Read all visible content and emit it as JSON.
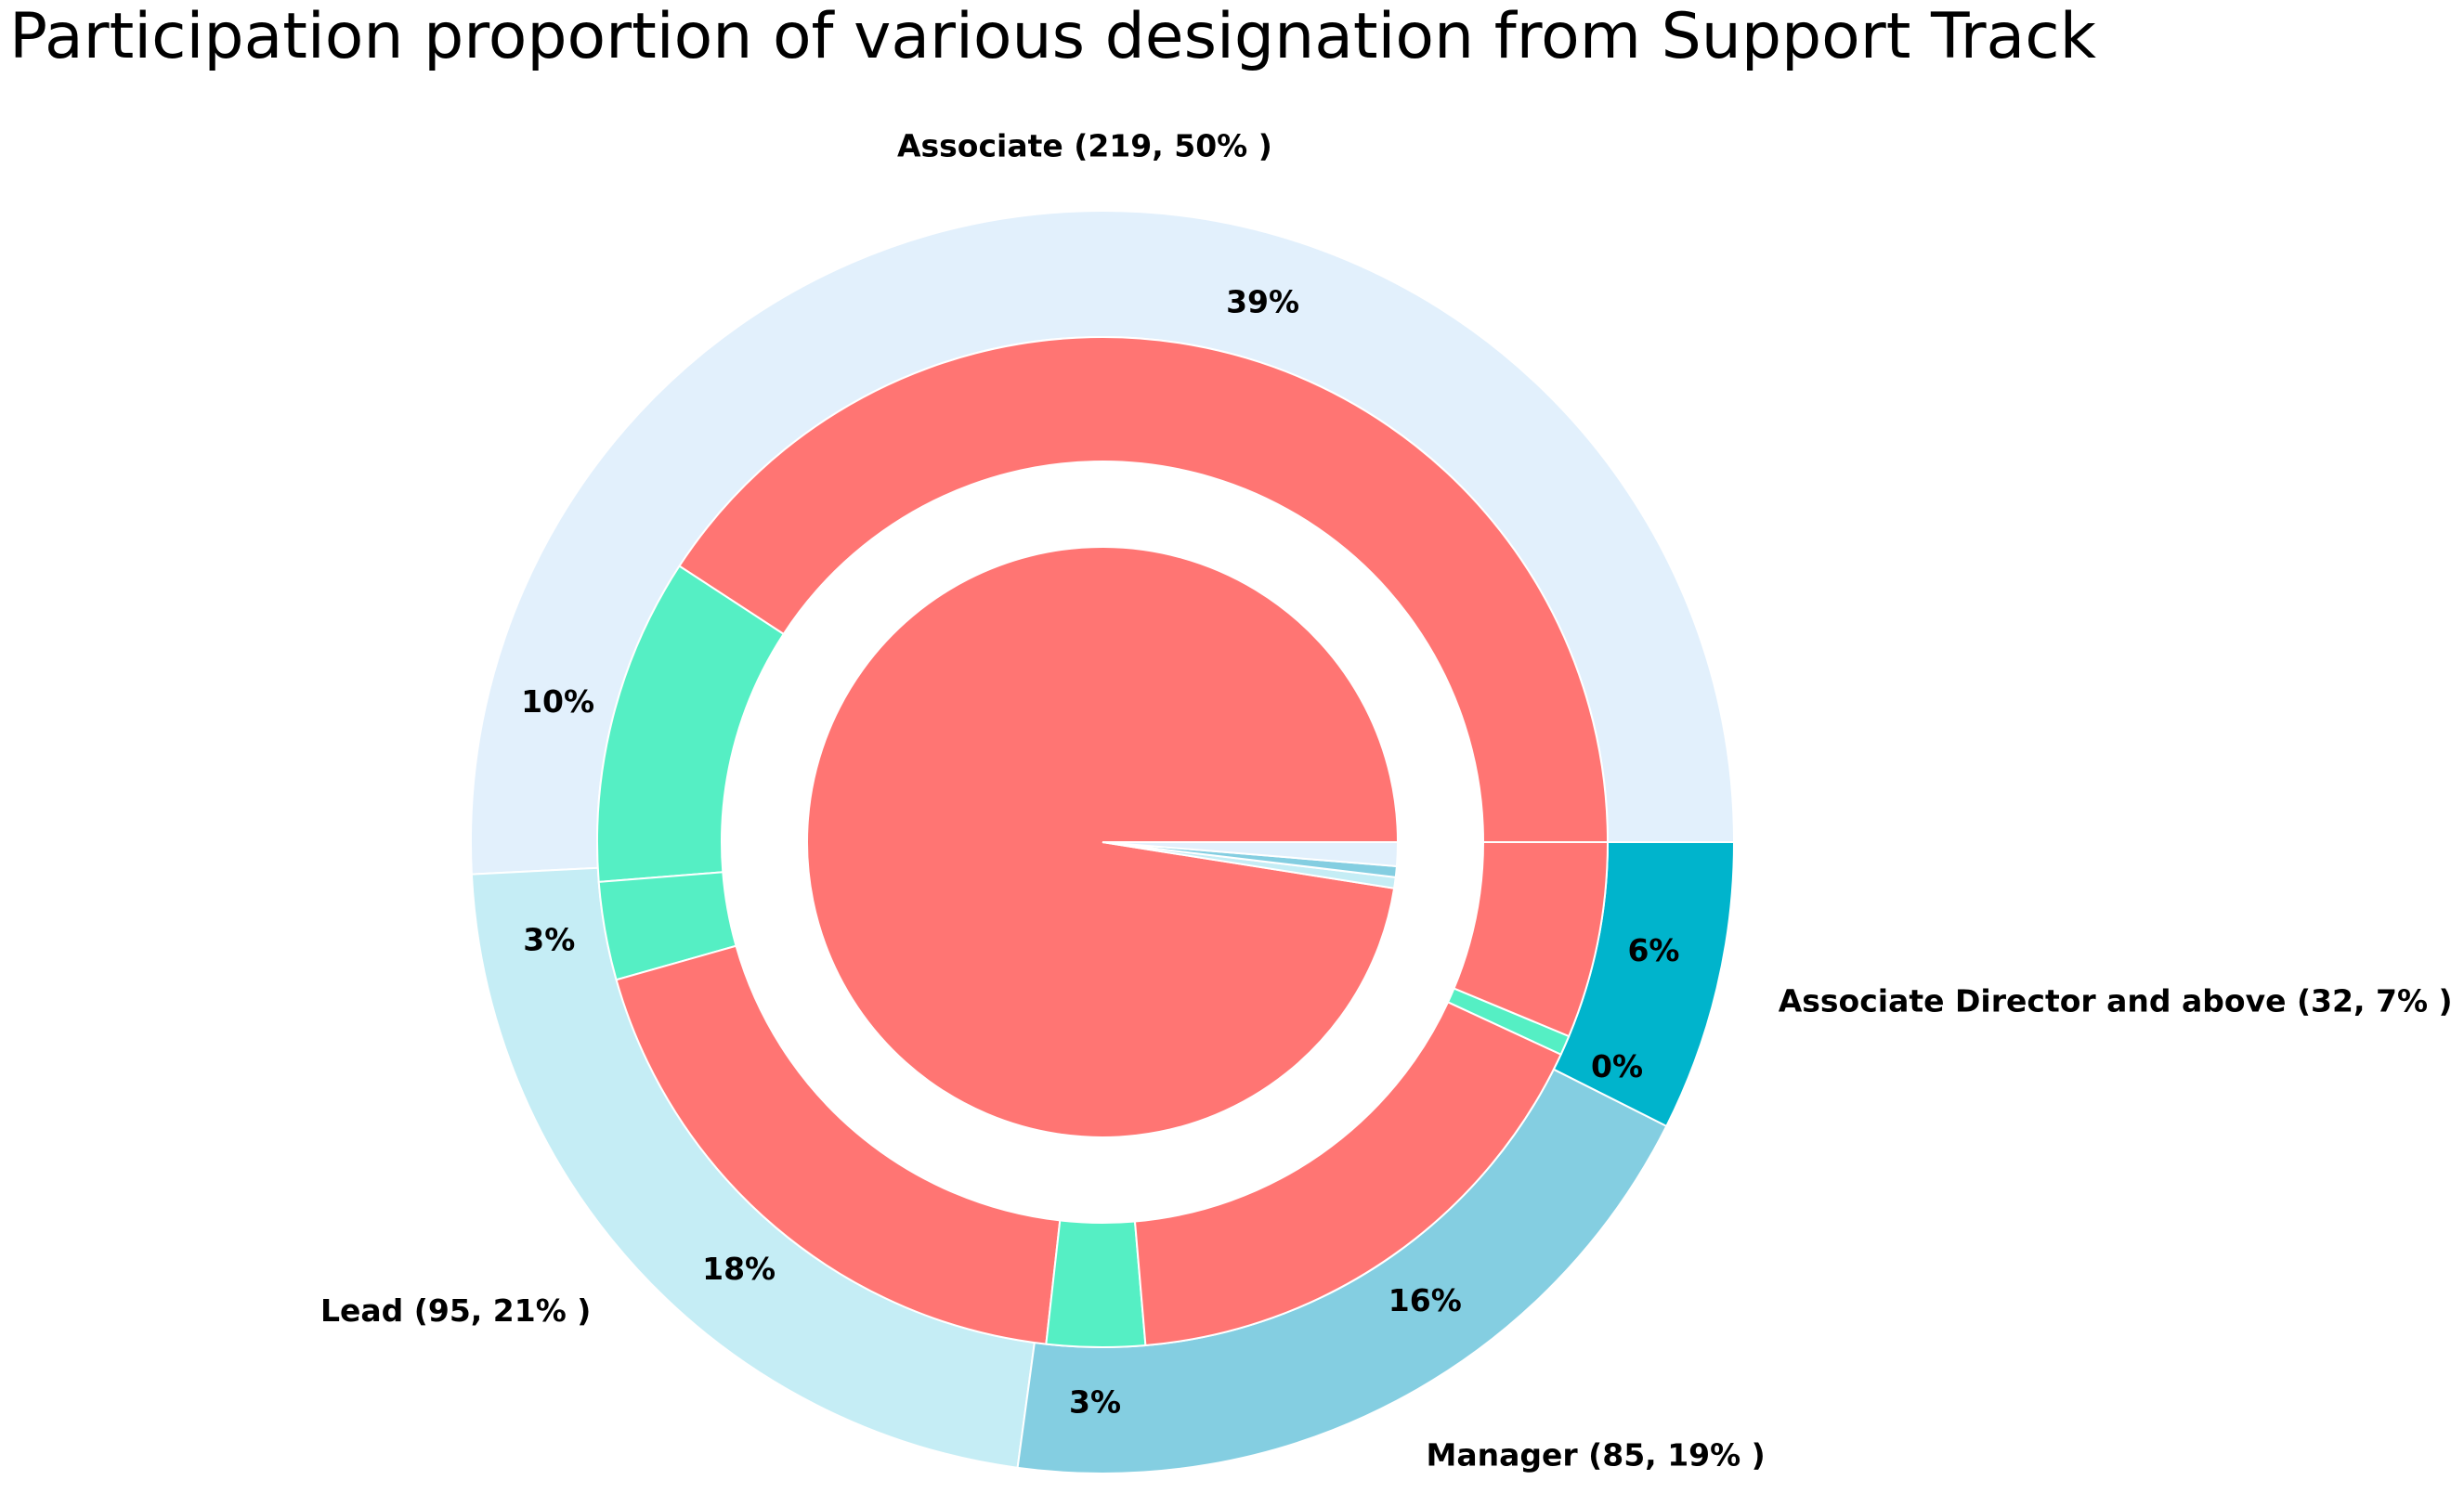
{
  "chart_data": {
    "type": "pie",
    "title": "Participation proportion of various designation from Support Track",
    "outer_ring": [
      {
        "label": "Associate (219, 50% )",
        "value": 219,
        "color": "#e2f0fc"
      },
      {
        "label": "Lead (95, 21% )",
        "value": 95,
        "color": "#c5edf5"
      },
      {
        "label": "Manager (85, 19% )",
        "value": 85,
        "color": "#84cee1"
      },
      {
        "label": "Associate Director and above (32, 7% )",
        "value": 32,
        "color": "#00b4cc"
      }
    ],
    "middle_ring": [
      {
        "value": 39,
        "label": "39%",
        "color": "#ff7573"
      },
      {
        "value": 10,
        "label": "10%",
        "color": "#55efc4"
      },
      {
        "value": 3,
        "label": "3%",
        "color": "#55efc4"
      },
      {
        "value": 18,
        "label": "18%",
        "color": "#ff7573"
      },
      {
        "value": 3,
        "label": "3%",
        "color": "#55efc4"
      },
      {
        "value": 16,
        "label": "16%",
        "color": "#ff7573"
      },
      {
        "value": 0.6,
        "label": "0%",
        "color": "#55efc4"
      },
      {
        "value": 6,
        "label": "6%",
        "color": "#ff7573"
      }
    ],
    "inner_pie": [
      {
        "value": 97.5,
        "color": "#ff7573"
      },
      {
        "value": 0.6,
        "color": "#c5edf5"
      },
      {
        "value": 0.6,
        "color": "#84cee1"
      },
      {
        "value": 1.3,
        "color": "#e2f0fc"
      }
    ]
  }
}
